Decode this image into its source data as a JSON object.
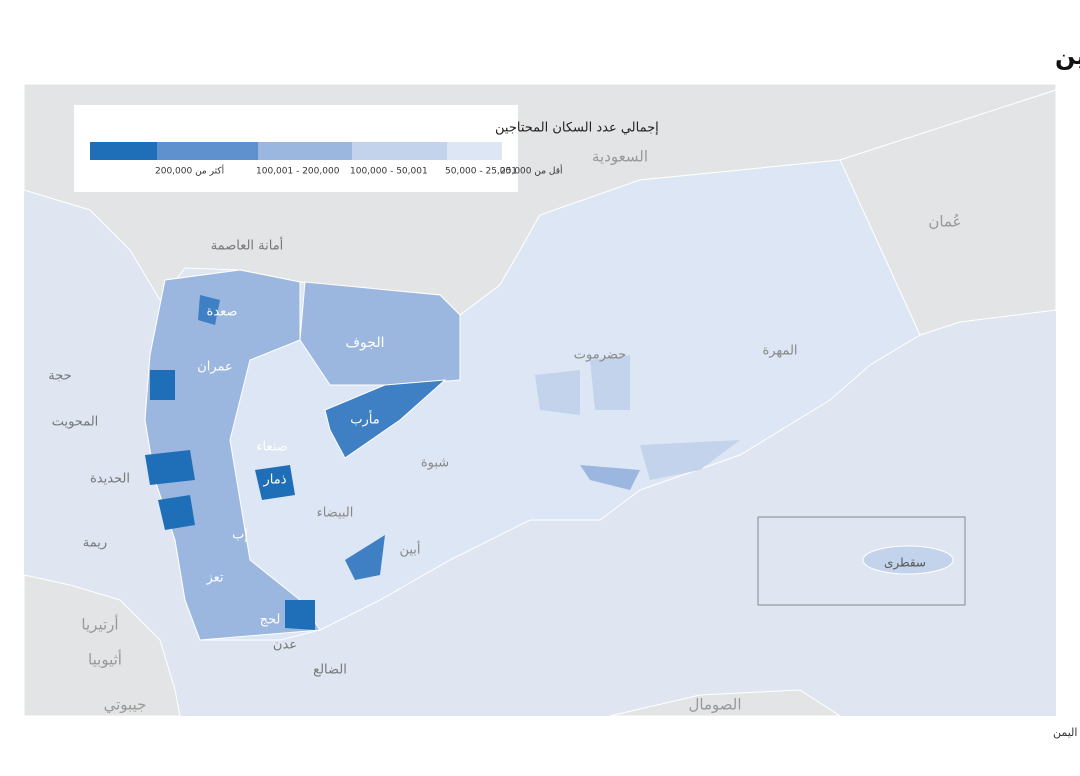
{
  "title": "العدد التقديري للأشخاص المحتاجين",
  "legend": {
    "title": "إجمالي عدد السكان المحتاجين",
    "items": [
      {
        "label": "أكثر من 200,000",
        "color": "#1f6fb8"
      },
      {
        "label": "200,000 - 100,001",
        "color": "#5f91cf"
      },
      {
        "label": "50,001 - 100,000",
        "color": "#9bb7e0"
      },
      {
        "label": "25,001 - 50,000",
        "color": "#c3d3ec"
      },
      {
        "label": "أقل من 25,000",
        "color": "#dde6f4"
      }
    ]
  },
  "places": [
    "السعودية",
    "عُمان",
    "الصومال",
    "جيبوتي",
    "أثيوبيا",
    "أرتيريا",
    "أمانة العاصمة",
    "صعدة",
    "الجوف",
    "عمران",
    "مأرب",
    "صنعاء",
    "حضرموت",
    "المهرة",
    "شبوة",
    "ذمار",
    "البيضاء",
    "أبين",
    "إب",
    "تعز",
    "لحج",
    "عدن",
    "الضالع",
    "حجة",
    "المحويت",
    "الحديدة",
    "ريمة",
    "سقطرى"
  ],
  "source": "المصدر: إطار التحليل المشترك بين القطاعات في اليمن"
}
